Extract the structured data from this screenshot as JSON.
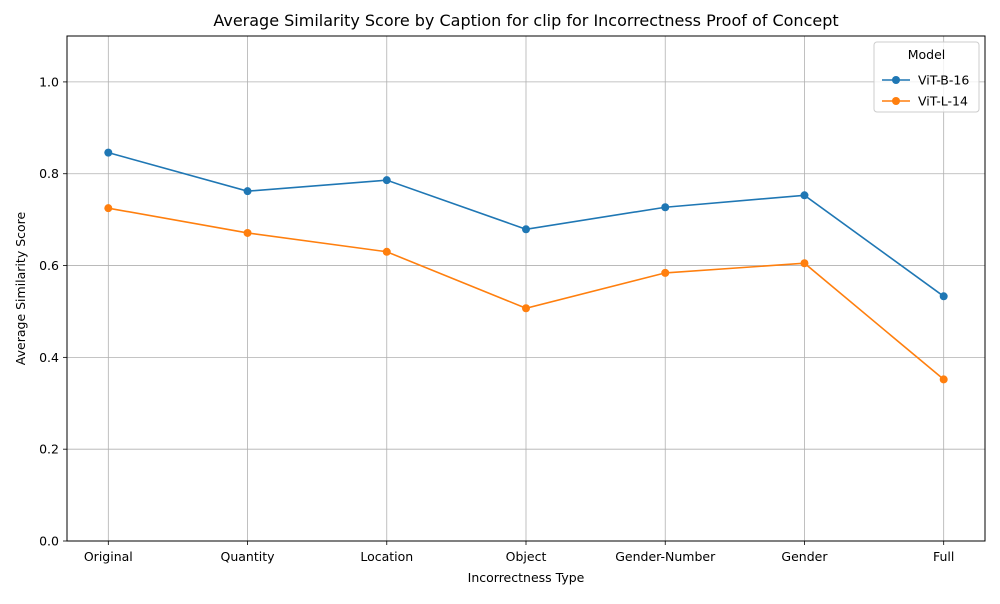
{
  "chart_data": {
    "type": "line",
    "title": "Average Similarity Score by Caption for clip for Incorrectness Proof of Concept",
    "xlabel": "Incorrectness Type",
    "ylabel": "Average Similarity Score",
    "categories": [
      "Original",
      "Quantity",
      "Location",
      "Object",
      "Gender-Number",
      "Gender",
      "Full"
    ],
    "ylim": [
      0,
      1.1
    ],
    "yticks": [
      0.0,
      0.2,
      0.4,
      0.6,
      0.8,
      1.0
    ],
    "ytick_labels": [
      "0.0",
      "0.2",
      "0.4",
      "0.6",
      "0.8",
      "1.0"
    ],
    "grid": true,
    "legend": {
      "title": "Model",
      "placement": "top-right"
    },
    "series": [
      {
        "name": "ViT-B-16",
        "color": "#1f77b4",
        "marker": "circle",
        "values": [
          0.846,
          0.762,
          0.786,
          0.679,
          0.727,
          0.753,
          0.533
        ]
      },
      {
        "name": "ViT-L-14",
        "color": "#ff7f0e",
        "marker": "circle",
        "values": [
          0.725,
          0.671,
          0.63,
          0.507,
          0.584,
          0.605,
          0.352
        ]
      }
    ]
  }
}
